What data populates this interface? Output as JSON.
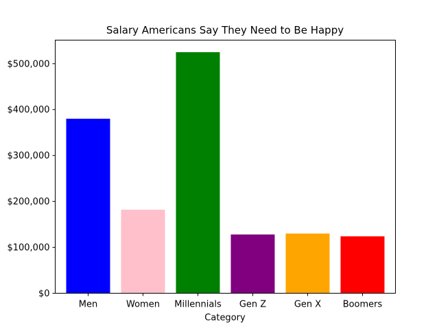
{
  "chart_data": {
    "type": "bar",
    "title": "Salary Americans Say They Need to Be Happy",
    "xlabel": "Category",
    "ylabel": "",
    "categories": [
      "Men",
      "Women",
      "Millennials",
      "Gen Z",
      "Gen X",
      "Boomers"
    ],
    "values": [
      380000,
      182000,
      525000,
      128000,
      130000,
      124000
    ],
    "colors": [
      "#0000ff",
      "#ffc0cb",
      "#008000",
      "#800080",
      "#ffa500",
      "#ff0000"
    ],
    "ylim": [
      0,
      551250
    ],
    "yticks": [
      0,
      100000,
      200000,
      300000,
      400000,
      500000
    ],
    "ytick_labels": [
      "$0",
      "$100,000",
      "$200,000",
      "$300,000",
      "$400,000",
      "$500,000"
    ],
    "grid": false,
    "legend": false
  }
}
